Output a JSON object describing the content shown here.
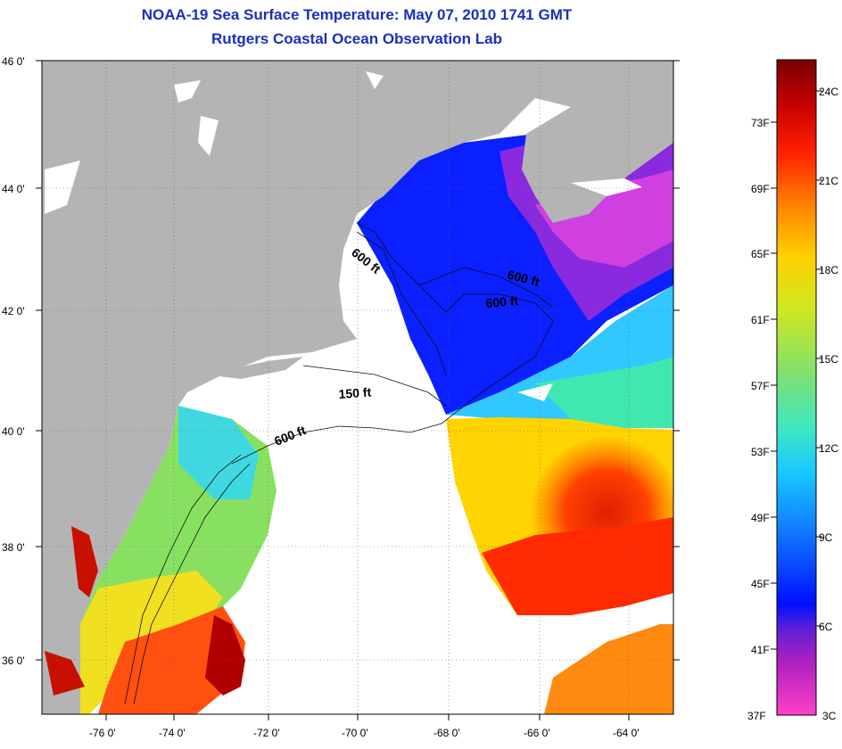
{
  "title": {
    "line1": "NOAA-19 Sea Surface Temperature:  May 07, 2010 1741 GMT",
    "line2": "Rutgers Coastal Ocean Observation Lab"
  },
  "map": {
    "lat_labels": [
      "46 0'",
      "44 0'",
      "42 0'",
      "40 0'",
      "38 0'",
      "36 0'"
    ],
    "lon_labels": [
      "-76 0'",
      "-74 0'",
      "-72 0'",
      "-70 0'",
      "-68 0'",
      "-66 0'",
      "-64 0'"
    ],
    "contour_labels": [
      "600 ft",
      "600 ft",
      "600 ft",
      "150 ft",
      "600 ft"
    ],
    "colors": {
      "land": "#b4b4b4",
      "cloud": "#ffffff",
      "grid": "#555555"
    }
  },
  "colorbar": {
    "fahrenheit_labels": [
      "73F",
      "69F",
      "65F",
      "61F",
      "57F",
      "53F",
      "49F",
      "45F",
      "41F",
      "37F"
    ],
    "celsius_labels": [
      "24C",
      "21C",
      "18C",
      "15C",
      "12C",
      "9C",
      "6C",
      "3C"
    ],
    "gradient_stops": [
      "#ff40c8",
      "#b020c0",
      "#7020d0",
      "#0018ff",
      "#1070ff",
      "#18c8ff",
      "#40e8c0",
      "#80e070",
      "#d0e820",
      "#ffd000",
      "#ff8000",
      "#ff2000",
      "#d00000",
      "#a00000",
      "#780000"
    ]
  }
}
